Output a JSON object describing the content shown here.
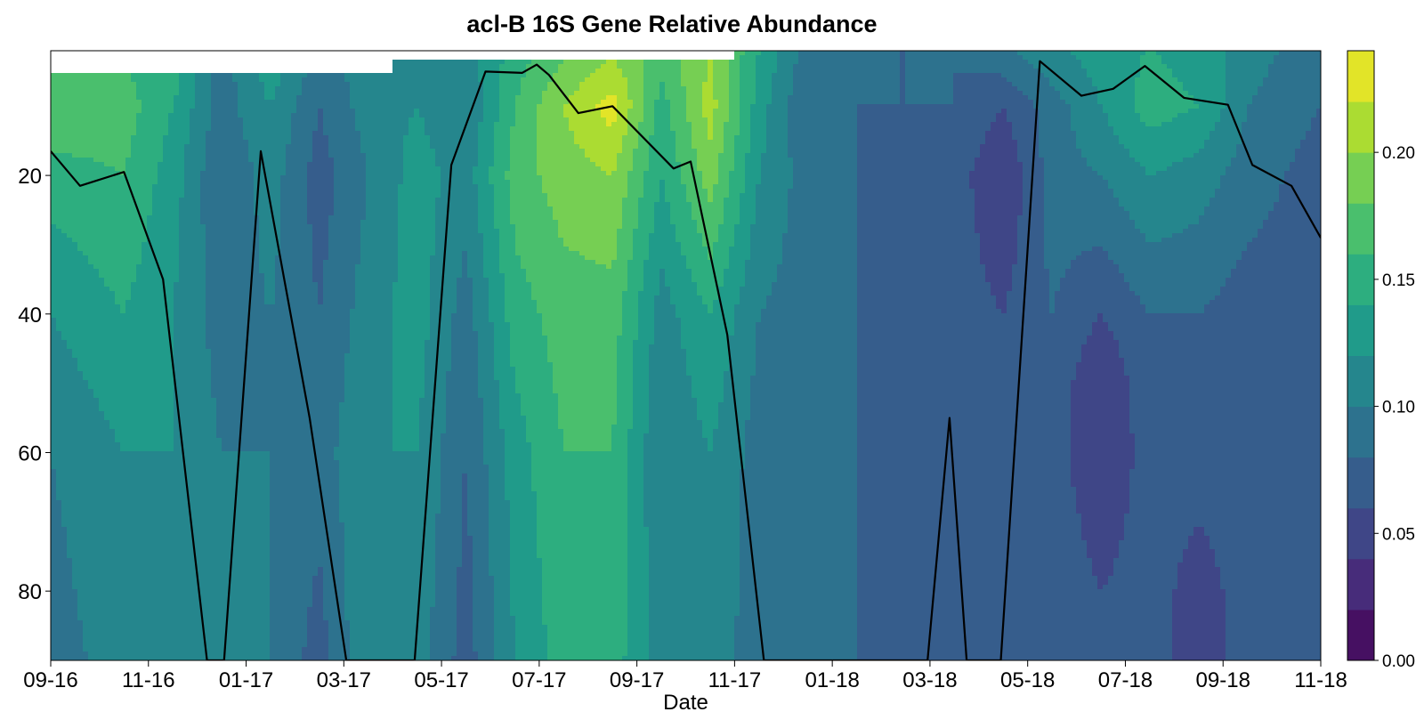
{
  "chart_data": {
    "type": "heatmap",
    "subtype": "filled-contour",
    "title": "acl-B 16S Gene Relative Abundance",
    "xlabel": "Date",
    "ylabel": "",
    "x_tick_labels": [
      "09-16",
      "11-16",
      "01-17",
      "03-17",
      "05-17",
      "07-17",
      "09-17",
      "11-17",
      "01-18",
      "03-18",
      "05-18",
      "07-18",
      "09-18",
      "11-18"
    ],
    "x_range_months": [
      0,
      26
    ],
    "y_tick_labels": [
      "20",
      "40",
      "60",
      "80"
    ],
    "y_range": [
      2,
      90
    ],
    "y_reversed": true,
    "colorbar": {
      "colormap": "viridis",
      "range": [
        0.0,
        0.24
      ],
      "levels": [
        0.0,
        0.02,
        0.04,
        0.06,
        0.08,
        0.1,
        0.12,
        0.14,
        0.16,
        0.18,
        0.2,
        0.22,
        0.24
      ],
      "tick_values": [
        0.0,
        0.05,
        0.1,
        0.15,
        0.2
      ],
      "tick_labels": [
        "0.00",
        "0.05",
        "0.10",
        "0.15",
        "0.20"
      ]
    },
    "columns": [
      {
        "month": 0,
        "surface": 5.5,
        "profile": [
          [
            5,
            0.16
          ],
          [
            10,
            0.18
          ],
          [
            20,
            0.15
          ],
          [
            40,
            0.12
          ],
          [
            60,
            0.1
          ],
          [
            90,
            0.09
          ]
        ]
      },
      {
        "month": 1.5,
        "surface": 5.5,
        "profile": [
          [
            5,
            0.16
          ],
          [
            10,
            0.17
          ],
          [
            20,
            0.16
          ],
          [
            40,
            0.14
          ],
          [
            60,
            0.12
          ],
          [
            90,
            0.11
          ]
        ]
      },
      {
        "month": 2.5,
        "surface": 5.5,
        "profile": [
          [
            5,
            0.15
          ],
          [
            10,
            0.14
          ],
          [
            20,
            0.13
          ],
          [
            40,
            0.12
          ],
          [
            60,
            0.12
          ],
          [
            90,
            0.1
          ]
        ]
      },
      {
        "month": 3.5,
        "surface": 5.5,
        "profile": [
          [
            5,
            0.09
          ],
          [
            10,
            0.09
          ],
          [
            20,
            0.08
          ],
          [
            40,
            0.09
          ],
          [
            60,
            0.1
          ],
          [
            90,
            0.1
          ]
        ]
      },
      {
        "month": 4.5,
        "surface": 5.5,
        "profile": [
          [
            5,
            0.13
          ],
          [
            10,
            0.12
          ],
          [
            20,
            0.11
          ],
          [
            40,
            0.1
          ],
          [
            60,
            0.1
          ],
          [
            90,
            0.1
          ]
        ]
      },
      {
        "month": 5.5,
        "surface": 5.5,
        "profile": [
          [
            5,
            0.09
          ],
          [
            10,
            0.08
          ],
          [
            20,
            0.07
          ],
          [
            40,
            0.08
          ],
          [
            60,
            0.09
          ],
          [
            90,
            0.07
          ]
        ]
      },
      {
        "month": 6.5,
        "surface": 5.5,
        "profile": [
          [
            5,
            0.11
          ],
          [
            10,
            0.11
          ],
          [
            20,
            0.1
          ],
          [
            40,
            0.11
          ],
          [
            60,
            0.12
          ],
          [
            90,
            0.12
          ]
        ]
      },
      {
        "month": 7.5,
        "surface": 3,
        "profile": [
          [
            3,
            0.12
          ],
          [
            10,
            0.12
          ],
          [
            20,
            0.13
          ],
          [
            40,
            0.13
          ],
          [
            60,
            0.12
          ],
          [
            90,
            0.11
          ]
        ]
      },
      {
        "month": 8.5,
        "surface": 3,
        "profile": [
          [
            3,
            0.11
          ],
          [
            10,
            0.1
          ],
          [
            20,
            0.11
          ],
          [
            40,
            0.09
          ],
          [
            60,
            0.08
          ],
          [
            90,
            0.07
          ]
        ]
      },
      {
        "month": 9.5,
        "surface": 3,
        "profile": [
          [
            3,
            0.15
          ],
          [
            10,
            0.16
          ],
          [
            20,
            0.17
          ],
          [
            40,
            0.15
          ],
          [
            60,
            0.13
          ],
          [
            90,
            0.12
          ]
        ]
      },
      {
        "month": 10.5,
        "surface": 3,
        "profile": [
          [
            3,
            0.18
          ],
          [
            10,
            0.2
          ],
          [
            20,
            0.19
          ],
          [
            40,
            0.17
          ],
          [
            60,
            0.16
          ],
          [
            90,
            0.15
          ]
        ]
      },
      {
        "month": 11.5,
        "surface": 3,
        "profile": [
          [
            3,
            0.2
          ],
          [
            10,
            0.23
          ],
          [
            20,
            0.2
          ],
          [
            40,
            0.17
          ],
          [
            60,
            0.16
          ],
          [
            90,
            0.15
          ]
        ]
      },
      {
        "month": 12.5,
        "surface": 3,
        "profile": [
          [
            3,
            0.17
          ],
          [
            10,
            0.15
          ],
          [
            20,
            0.14
          ],
          [
            40,
            0.11
          ],
          [
            60,
            0.1
          ],
          [
            90,
            0.11
          ]
        ]
      },
      {
        "month": 13.5,
        "surface": 3,
        "profile": [
          [
            3,
            0.2
          ],
          [
            10,
            0.21
          ],
          [
            20,
            0.19
          ],
          [
            40,
            0.14
          ],
          [
            60,
            0.12
          ],
          [
            90,
            0.11
          ]
        ]
      },
      {
        "month": 14.5,
        "surface": 2,
        "profile": [
          [
            2,
            0.14
          ],
          [
            10,
            0.13
          ],
          [
            20,
            0.12
          ],
          [
            40,
            0.1
          ],
          [
            60,
            0.09
          ],
          [
            90,
            0.09
          ]
        ]
      },
      {
        "month": 15.5,
        "surface": 2,
        "profile": [
          [
            2,
            0.09
          ],
          [
            10,
            0.08
          ],
          [
            20,
            0.09
          ],
          [
            40,
            0.09
          ],
          [
            60,
            0.08
          ],
          [
            90,
            0.08
          ]
        ]
      },
      {
        "month": 16.5,
        "surface": 2,
        "profile": [
          [
            2,
            0.08
          ],
          [
            10,
            0.08
          ],
          [
            20,
            0.08
          ],
          [
            40,
            0.08
          ],
          [
            60,
            0.08
          ],
          [
            90,
            0.08
          ]
        ]
      },
      {
        "month": 17.5,
        "surface": 2,
        "profile": [
          [
            2,
            0.08
          ],
          [
            10,
            0.08
          ],
          [
            20,
            0.07
          ],
          [
            40,
            0.07
          ],
          [
            60,
            0.07
          ],
          [
            90,
            0.07
          ]
        ]
      },
      {
        "month": 18.5,
        "surface": 2,
        "profile": [
          [
            2,
            0.08
          ],
          [
            10,
            0.08
          ],
          [
            20,
            0.07
          ],
          [
            40,
            0.07
          ],
          [
            60,
            0.07
          ],
          [
            90,
            0.07
          ]
        ]
      },
      {
        "month": 19.5,
        "surface": 1,
        "profile": [
          [
            1,
            0.1
          ],
          [
            10,
            0.06
          ],
          [
            20,
            0.04
          ],
          [
            40,
            0.06
          ],
          [
            60,
            0.06
          ],
          [
            90,
            0.06
          ]
        ]
      },
      {
        "month": 20.5,
        "surface": 1,
        "profile": [
          [
            1,
            0.12
          ],
          [
            10,
            0.09
          ],
          [
            20,
            0.09
          ],
          [
            40,
            0.08
          ],
          [
            60,
            0.07
          ],
          [
            90,
            0.08
          ]
        ]
      },
      {
        "month": 21.5,
        "surface": 1,
        "profile": [
          [
            1,
            0.13
          ],
          [
            10,
            0.12
          ],
          [
            20,
            0.1
          ],
          [
            40,
            0.06
          ],
          [
            50,
            0.04
          ],
          [
            60,
            0.04
          ],
          [
            90,
            0.07
          ]
        ]
      },
      {
        "month": 22.5,
        "surface": 1,
        "profile": [
          [
            1,
            0.14
          ],
          [
            10,
            0.15
          ],
          [
            20,
            0.12
          ],
          [
            40,
            0.08
          ],
          [
            60,
            0.07
          ],
          [
            90,
            0.07
          ]
        ]
      },
      {
        "month": 23.5,
        "surface": 1,
        "profile": [
          [
            1,
            0.13
          ],
          [
            10,
            0.14
          ],
          [
            20,
            0.11
          ],
          [
            40,
            0.08
          ],
          [
            60,
            0.07
          ],
          [
            80,
            0.05
          ],
          [
            90,
            0.05
          ]
        ]
      },
      {
        "month": 24.5,
        "surface": 1,
        "profile": [
          [
            1,
            0.11
          ],
          [
            10,
            0.1
          ],
          [
            20,
            0.09
          ],
          [
            40,
            0.07
          ],
          [
            60,
            0.07
          ],
          [
            90,
            0.07
          ]
        ]
      },
      {
        "month": 26,
        "surface": 1,
        "profile": [
          [
            1,
            0.09
          ],
          [
            10,
            0.08
          ],
          [
            20,
            0.07
          ],
          [
            40,
            0.07
          ],
          [
            60,
            0.07
          ],
          [
            90,
            0.07
          ]
        ]
      }
    ],
    "overlay_line": {
      "color": "#000000",
      "points": [
        [
          0,
          16.5
        ],
        [
          0.6,
          21.5
        ],
        [
          1.5,
          19.5
        ],
        [
          2.3,
          35
        ],
        [
          3.2,
          90
        ],
        [
          3.55,
          90
        ],
        [
          4.3,
          16.5
        ],
        [
          5.3,
          55
        ],
        [
          6.05,
          90
        ],
        [
          7.45,
          90
        ],
        [
          8.2,
          18.5
        ],
        [
          8.9,
          5
        ],
        [
          9.65,
          5.2
        ],
        [
          9.95,
          4
        ],
        [
          10.2,
          5.5
        ],
        [
          10.8,
          11
        ],
        [
          11.5,
          10
        ],
        [
          12.75,
          19
        ],
        [
          13.1,
          18
        ],
        [
          13.85,
          43
        ],
        [
          14.6,
          90
        ],
        [
          17.95,
          90
        ],
        [
          18.4,
          55
        ],
        [
          18.75,
          90
        ],
        [
          19.45,
          90
        ],
        [
          20.25,
          3.5
        ],
        [
          21.1,
          8.5
        ],
        [
          21.75,
          7.5
        ],
        [
          22.4,
          4.2
        ],
        [
          23.2,
          8.8
        ],
        [
          24.1,
          9.8
        ],
        [
          24.6,
          18.5
        ],
        [
          25.4,
          21.5
        ],
        [
          26,
          29
        ]
      ]
    }
  }
}
